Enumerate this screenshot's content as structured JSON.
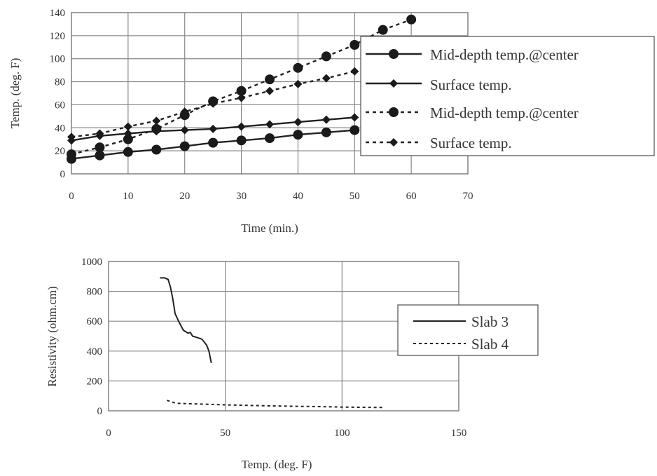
{
  "chart_data": [
    {
      "type": "line",
      "title": "",
      "xlabel": "Time (min.)",
      "ylabel": "Temp. (deg. F)",
      "xlim": [
        0,
        70
      ],
      "ylim": [
        0,
        140
      ],
      "xticks": [
        "0",
        "10",
        "20",
        "30",
        "40",
        "50",
        "60",
        "70"
      ],
      "yticks": [
        "0",
        "20",
        "40",
        "60",
        "80",
        "100",
        "120",
        "140"
      ],
      "grid": true,
      "legend_position": "right",
      "series": [
        {
          "name": "Mid-depth temp.@center",
          "line_style": "solid",
          "marker": "circle",
          "x": [
            0,
            5,
            10,
            15,
            20,
            25,
            30,
            35,
            40,
            45,
            50
          ],
          "y": [
            13,
            16,
            19,
            21,
            24,
            27,
            29,
            31,
            34,
            36,
            38
          ]
        },
        {
          "name": "Surface temp.",
          "line_style": "solid",
          "marker": "diamond",
          "x": [
            0,
            5,
            10,
            15,
            20,
            25,
            30,
            35,
            40,
            45,
            50
          ],
          "y": [
            29,
            33,
            35,
            37,
            38,
            39,
            41,
            43,
            45,
            47,
            49
          ]
        },
        {
          "name": "Mid-depth temp.@center",
          "line_style": "dashed",
          "marker": "circle",
          "x": [
            0,
            5,
            10,
            15,
            20,
            25,
            30,
            35,
            40,
            45,
            50,
            55,
            60
          ],
          "y": [
            17,
            23,
            30,
            39,
            51,
            63,
            72,
            82,
            92,
            102,
            112,
            125,
            134
          ]
        },
        {
          "name": "Surface temp.",
          "line_style": "dashed",
          "marker": "diamond",
          "x": [
            0,
            5,
            10,
            15,
            20,
            25,
            30,
            35,
            40,
            45,
            50
          ],
          "y": [
            32,
            35,
            41,
            46,
            54,
            61,
            66,
            72,
            78,
            83,
            89
          ]
        }
      ]
    },
    {
      "type": "line",
      "title": "",
      "xlabel": "Temp. (deg. F)",
      "ylabel": "Resistivity (ohm.cm)",
      "xlim": [
        0,
        150
      ],
      "ylim": [
        0,
        1000
      ],
      "xticks": [
        "0",
        "50",
        "100",
        "150"
      ],
      "yticks": [
        "0",
        "200",
        "400",
        "600",
        "800",
        "1000"
      ],
      "grid": true,
      "legend_position": "right",
      "series": [
        {
          "name": "Slab 3",
          "line_style": "solid",
          "x": [
            22,
            24,
            25.5,
            26.5,
            27.5,
            28.5,
            30,
            31,
            32,
            34,
            35,
            36,
            38,
            40,
            42,
            43,
            44
          ],
          "y": [
            890,
            890,
            880,
            830,
            750,
            650,
            600,
            570,
            540,
            520,
            525,
            500,
            490,
            480,
            440,
            400,
            320
          ]
        },
        {
          "name": "Slab 4",
          "line_style": "dashed",
          "x": [
            25,
            28,
            30,
            40,
            50,
            60,
            70,
            80,
            90,
            100,
            110,
            118
          ],
          "y": [
            70,
            55,
            50,
            45,
            40,
            36,
            33,
            30,
            28,
            25,
            23,
            22
          ]
        }
      ]
    }
  ]
}
